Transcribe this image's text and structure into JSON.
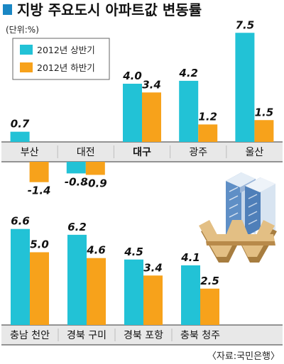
{
  "title": "지방 주요도시 아파트값 변동률",
  "unit": "(단위:%)",
  "source": "〈자료:국민은행〉",
  "colors": {
    "first_half": "#22c2d6",
    "second_half": "#f7a21b",
    "title_mark": "#1a87c4",
    "band": "#e8e8e8"
  },
  "chart_data": [
    {
      "type": "bar",
      "categories": [
        "부산",
        "대전",
        "대구",
        "광주",
        "울산"
      ],
      "series": [
        {
          "name": "2012년 상반기",
          "values": [
            0.7,
            -0.8,
            4.0,
            4.2,
            7.5
          ]
        },
        {
          "name": "2012년 하반기",
          "values": [
            -1.4,
            -0.9,
            3.4,
            1.2,
            1.5
          ]
        }
      ],
      "value_labels": {
        "first": [
          "0.7",
          "-0.8",
          "4.0",
          "4.2",
          "7.5"
        ],
        "second": [
          "-1.4",
          "-0.9",
          "3.4",
          "1.2",
          "1.5"
        ]
      },
      "highlight_category": "대구",
      "legend": "top-left",
      "ylim": [
        -1.4,
        7.5
      ]
    },
    {
      "type": "bar",
      "categories": [
        "충남 천안",
        "경북 구미",
        "경북 포항",
        "충북 청주"
      ],
      "series": [
        {
          "name": "2012년 상반기",
          "values": [
            6.6,
            6.2,
            4.5,
            4.1
          ]
        },
        {
          "name": "2012년 하반기",
          "values": [
            5.0,
            4.6,
            3.4,
            2.5
          ]
        }
      ],
      "value_labels": {
        "first": [
          "6.6",
          "6.2",
          "4.5",
          "4.1"
        ],
        "second": [
          "5.0",
          "4.6",
          "3.4",
          "2.5"
        ]
      },
      "ylim": [
        0,
        7.5
      ]
    }
  ]
}
